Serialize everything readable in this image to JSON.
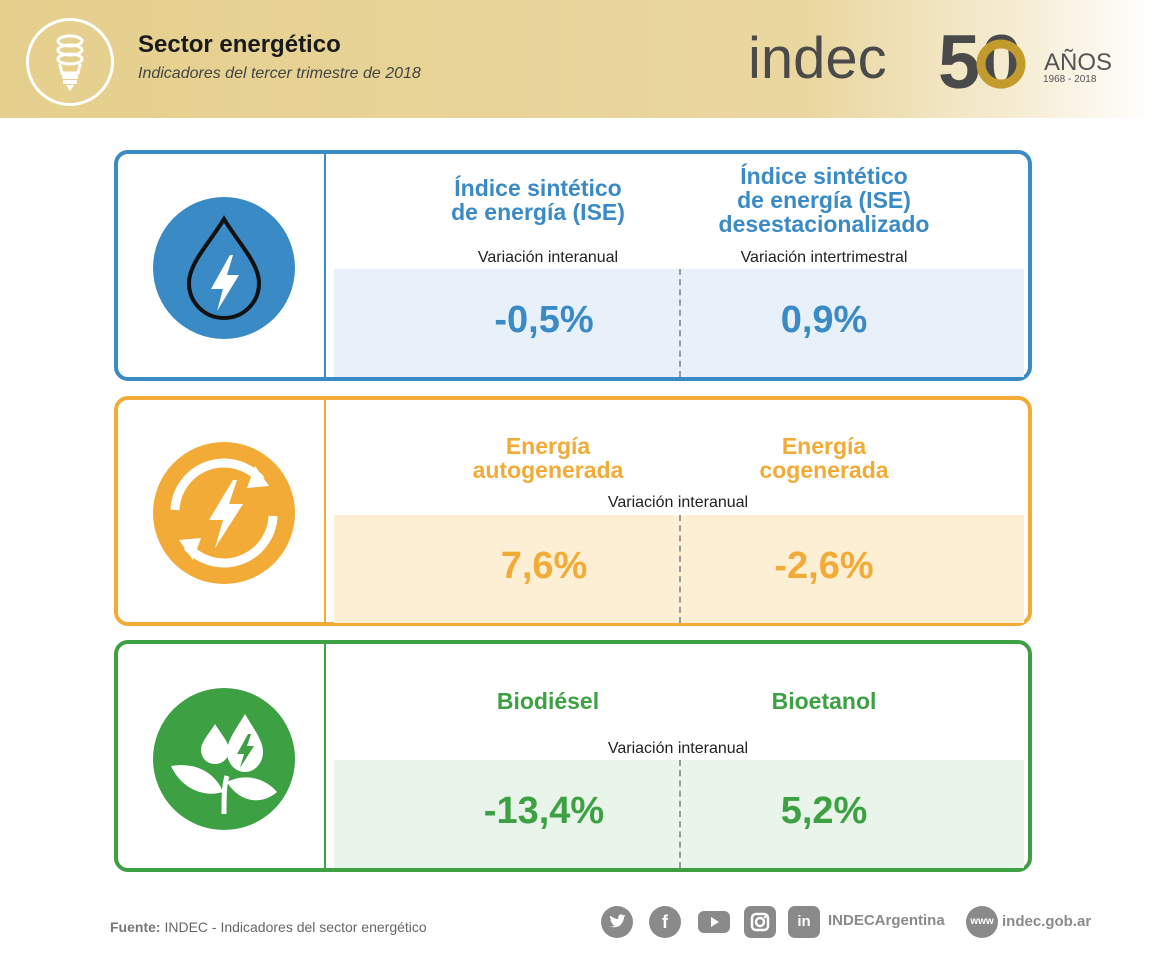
{
  "header": {
    "title": "Sector energético",
    "subtitle": "Indicadores del tercer trimestre de 2018",
    "logo": {
      "brand": "indec",
      "number": "50",
      "years_label": "AÑOS",
      "range": "1968  -  2018"
    },
    "background_color": "#e8d393"
  },
  "cards": [
    {
      "color": "#3a8ac6",
      "bg": "#e8f1f9",
      "icon": "water-drop-bolt-icon",
      "col1": {
        "title_line1": "Índice sintético",
        "title_line2": "de energía (ISE)",
        "label": "Variación interanual",
        "value": "-0,5%"
      },
      "col2": {
        "title_line1": "Índice sintético",
        "title_line2": "de energía (ISE)",
        "title_line3": "desestacionalizado",
        "label": "Variación intertrimestral",
        "value": "0,9%"
      }
    },
    {
      "color": "#f2ab36",
      "bg": "#fdefd4",
      "icon": "renewable-bolt-icon",
      "col1": {
        "title_line1": "Energía",
        "title_line2": "autogenerada",
        "value": "7,6%"
      },
      "col2": {
        "title_line1": "Energía",
        "title_line2": "cogenerada",
        "value": "-2,6%"
      },
      "label": "Variación interanual"
    },
    {
      "color": "#3da143",
      "bg": "#e9f5ea",
      "icon": "plant-drops-icon",
      "col1": {
        "title": "Biodiésel",
        "value": "-13,4%"
      },
      "col2": {
        "title": "Bioetanol",
        "value": "5,2%"
      },
      "label": "Variación interanual"
    }
  ],
  "footer": {
    "source_label": "Fuente:",
    "source_text": "INDEC - Indicadores del sector energético",
    "social": [
      "twitter-icon",
      "facebook-icon",
      "youtube-icon",
      "instagram-icon",
      "linkedin-icon"
    ],
    "facebook_glyph": "f",
    "linkedin_glyph": "in",
    "www_glyph": "www",
    "handle": "INDECArgentina",
    "website": "indec.gob.ar"
  }
}
